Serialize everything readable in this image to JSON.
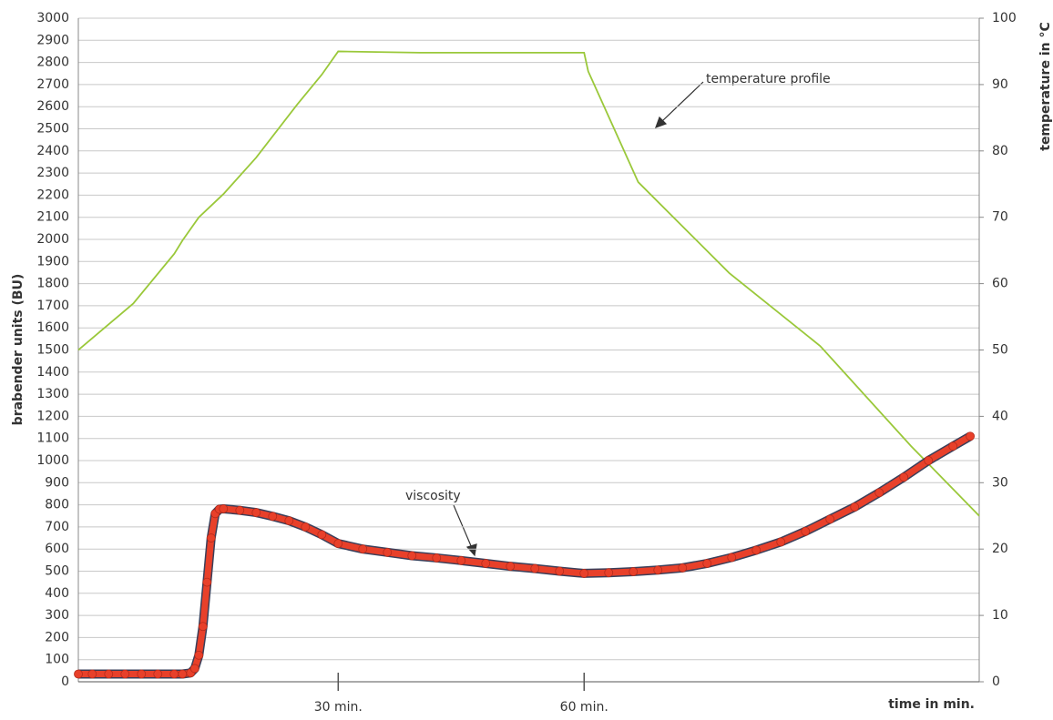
{
  "chart_data": {
    "type": "line",
    "xlabel": "time in min.",
    "ylabel": "brabender units (BU)",
    "y2label": "temperature in °C",
    "annotations": [
      "temperature profile",
      "viscosity"
    ],
    "xlim": [
      -1.7,
      108.2
    ],
    "xticks": [
      {
        "value": 30,
        "label": "30 min."
      },
      {
        "value": 60,
        "label": "60 min."
      }
    ],
    "ylim": [
      0,
      3000
    ],
    "yticks": [
      0,
      100,
      200,
      300,
      400,
      500,
      600,
      700,
      800,
      900,
      1000,
      1100,
      1200,
      1300,
      1400,
      1500,
      1600,
      1700,
      1800,
      1900,
      2000,
      2100,
      2200,
      2300,
      2400,
      2500,
      2600,
      2700,
      2800,
      2900,
      3000
    ],
    "y2lim": [
      0,
      100
    ],
    "y2ticks": [
      0,
      10,
      20,
      30,
      40,
      50,
      60,
      70,
      80,
      90,
      100
    ],
    "grid": true,
    "series": [
      {
        "name": "temperature profile",
        "color": "#9ac83a",
        "axis": "y2",
        "x": [
          -1.7,
          5,
          10,
          11,
          13,
          16,
          20,
          25,
          28,
          30,
          40,
          50,
          60,
          60.5,
          66.6,
          77.7,
          88.8,
          99.9,
          108.2
        ],
        "values": [
          50,
          57,
          64.5,
          66.5,
          70,
          73.5,
          79,
          87,
          91.5,
          95,
          94.8,
          94.8,
          94.8,
          92,
          75.3,
          61.6,
          50.6,
          35.5,
          25
        ]
      },
      {
        "name": "viscosity",
        "color": "#e8402a",
        "axis": "y",
        "x": [
          -1.7,
          0,
          2,
          4,
          6,
          8,
          10,
          11,
          12,
          12.5,
          13,
          13.5,
          14,
          14.5,
          15,
          15.5,
          16,
          18,
          20,
          22,
          24,
          26,
          28,
          30,
          33,
          36,
          39,
          42,
          45,
          48,
          51,
          54,
          57,
          60,
          63,
          66,
          69,
          72,
          75,
          78,
          81,
          84,
          87,
          90,
          93,
          96,
          99,
          102,
          105,
          107.1
        ],
        "values": [
          35,
          35,
          35,
          35,
          35,
          35,
          35,
          35,
          40,
          60,
          120,
          250,
          450,
          650,
          760,
          780,
          782,
          775,
          765,
          748,
          728,
          700,
          665,
          625,
          600,
          585,
          570,
          560,
          548,
          535,
          522,
          512,
          500,
          490,
          493,
          498,
          505,
          515,
          535,
          562,
          595,
          632,
          680,
          735,
          790,
          855,
          925,
          1000,
          1065,
          1110
        ]
      }
    ]
  }
}
